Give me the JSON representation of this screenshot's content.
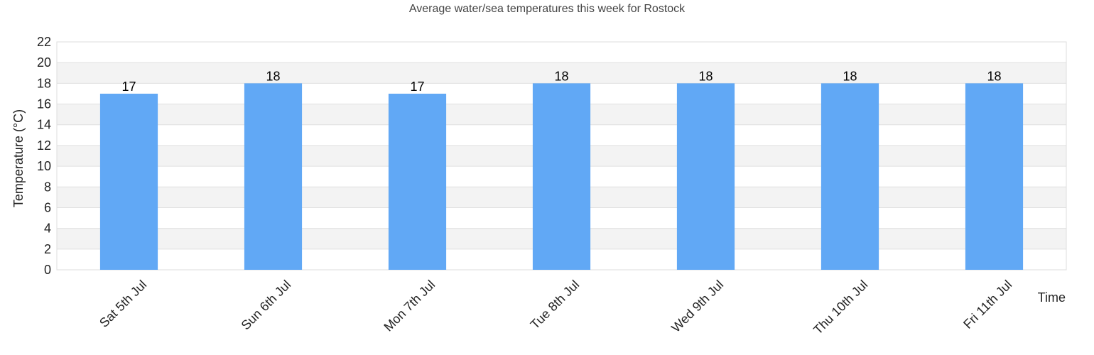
{
  "chart_data": {
    "type": "bar",
    "title": "Average water/sea temperatures this week for Rostock",
    "xlabel": "Time",
    "ylabel": "Temperature (°C)",
    "categories": [
      "Sat 5th Jul",
      "Sun 6th Jul",
      "Mon 7th Jul",
      "Tue 8th Jul",
      "Wed 9th Jul",
      "Thu 10th Jul",
      "Fri 11th Jul"
    ],
    "values": [
      17,
      18,
      17,
      18,
      18,
      18,
      18
    ],
    "data_labels": [
      "17",
      "18",
      "17",
      "18",
      "18",
      "18",
      "18"
    ],
    "ylim": [
      0,
      22
    ],
    "yticks": [
      0,
      2,
      4,
      6,
      8,
      10,
      12,
      14,
      16,
      18,
      20,
      22
    ],
    "grid": true,
    "bar_color": "#61a8f5",
    "band_color": "#f3f3f3",
    "gridline_color": "#e0e0e0"
  }
}
